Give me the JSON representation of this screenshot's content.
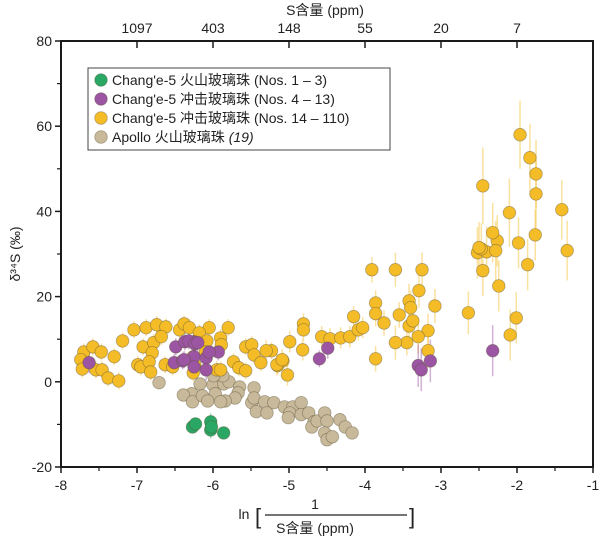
{
  "chart_data": {
    "type": "scatter",
    "title": "",
    "xlabel_prefix": "ln",
    "xlabel_numerator": "1",
    "xlabel_denominator": "S含量 (ppm)",
    "ylabel": "δ³⁴S (‰)",
    "top_xlabel": "S含量 (ppm)",
    "xlim": [
      -8,
      -1
    ],
    "ylim": [
      -20,
      80
    ],
    "x_ticks": [
      -8,
      -7,
      -6,
      -5,
      -4,
      -3,
      -2,
      -1
    ],
    "x_tick_labels": [
      "-8",
      "-7",
      "-6",
      "-5",
      "-4",
      "-3",
      "-2",
      "-1"
    ],
    "y_ticks": [
      -20,
      0,
      20,
      40,
      60,
      80
    ],
    "y_tick_labels": [
      "-20",
      "0",
      "20",
      "40",
      "60",
      "80"
    ],
    "y_minor_ticks": [
      -10,
      10,
      30,
      50,
      70
    ],
    "x_minor_ticks": [
      -7.5,
      -6.5,
      -5.5,
      -4.5,
      -3.5,
      -2.5,
      -1.5
    ],
    "top_ticks": [
      {
        "x": -7,
        "label": "1097"
      },
      {
        "x": -6,
        "label": "403"
      },
      {
        "x": -5,
        "label": "148"
      },
      {
        "x": -4,
        "label": "55"
      },
      {
        "x": -3,
        "label": "20"
      },
      {
        "x": -2,
        "label": "7"
      }
    ],
    "grid": false,
    "legend_position": "top-left",
    "series": [
      {
        "name": "Chang'e-5 火山玻璃珠 (Nos. 1 – 3)",
        "label_main": "Chang'e-5 火山玻璃珠 ",
        "label_suffix": "(Nos. 1 – 3)",
        "suffix_italic": false,
        "color": "#2aa764",
        "points": [
          [
            -6.27,
            -10.6,
            1.5
          ],
          [
            -6.23,
            -9.9,
            1.5
          ],
          [
            -6.03,
            -9.4,
            2
          ],
          [
            -6.03,
            -11.3,
            2
          ],
          [
            -6.02,
            -10.6,
            1.5
          ],
          [
            -5.86,
            -12.0,
            1.5
          ]
        ]
      },
      {
        "name": "Chang'e-5 冲击玻璃珠 (Nos. 4 – 13)",
        "label_main": "Chang'e-5 冲击玻璃珠 ",
        "label_suffix": "(Nos. 4 – 13)",
        "suffix_italic": false,
        "color": "#9b55a3",
        "points": [
          [
            -7.63,
            4.5,
            2.5
          ],
          [
            -6.49,
            8.2,
            2
          ],
          [
            -6.37,
            9.4,
            2
          ],
          [
            -6.25,
            9.4,
            2
          ],
          [
            -6.51,
            4.5,
            2
          ],
          [
            -6.4,
            4.9,
            2
          ],
          [
            -6.25,
            5.9,
            2
          ],
          [
            -6.32,
            9.6,
            2
          ],
          [
            -6.24,
            8.9,
            2
          ],
          [
            -6.2,
            9.2,
            2
          ],
          [
            -6.25,
            3.5,
            2.5
          ],
          [
            -6.38,
            5.2,
            2
          ],
          [
            -6.09,
            5.6,
            2.5
          ],
          [
            -6.09,
            2.8,
            2.5
          ],
          [
            -5.93,
            7.0,
            2
          ],
          [
            -6.05,
            7.0,
            2
          ],
          [
            -4.6,
            5.4,
            2
          ],
          [
            -4.49,
            7.9,
            2.5
          ],
          [
            -3.3,
            3.8,
            5
          ],
          [
            -3.26,
            2.8,
            5
          ],
          [
            -3.14,
            4.9,
            5
          ],
          [
            -2.32,
            7.3,
            6
          ]
        ]
      },
      {
        "name": "Chang'e-5 冲击玻璃珠 (Nos. 14 – 110)",
        "label_main": "Chang'e-5 冲击玻璃珠 ",
        "label_suffix": "(Nos. 14 – 110)",
        "suffix_italic": false,
        "color": "#f4bc27",
        "points": [
          [
            -7.7,
            7.0,
            2
          ],
          [
            -7.58,
            8.2,
            2
          ],
          [
            -7.47,
            7.0,
            2
          ],
          [
            -7.74,
            5.2,
            2
          ],
          [
            -7.72,
            3.0,
            2
          ],
          [
            -7.54,
            2.8,
            2
          ],
          [
            -7.46,
            2.8,
            2
          ],
          [
            -7.38,
            0.9,
            2
          ],
          [
            -7.24,
            0.2,
            2
          ],
          [
            -7.3,
            5.9,
            2
          ],
          [
            -7.19,
            9.6,
            2
          ],
          [
            -7.04,
            12.2,
            2
          ],
          [
            -6.88,
            12.7,
            2
          ],
          [
            -6.74,
            13.4,
            2
          ],
          [
            -6.62,
            12.9,
            2
          ],
          [
            -6.92,
            8.2,
            2
          ],
          [
            -6.78,
            9.2,
            2
          ],
          [
            -6.68,
            10.6,
            2
          ],
          [
            -6.8,
            6.8,
            2
          ],
          [
            -6.99,
            4.0,
            2
          ],
          [
            -6.95,
            3.5,
            2
          ],
          [
            -6.84,
            4.7,
            2
          ],
          [
            -6.82,
            2.3,
            2
          ],
          [
            -6.63,
            4.0,
            2
          ],
          [
            -6.53,
            3.5,
            2
          ],
          [
            -6.44,
            12.2,
            2
          ],
          [
            -6.38,
            13.6,
            2
          ],
          [
            -6.31,
            12.7,
            2
          ],
          [
            -6.05,
            12.7,
            2
          ],
          [
            -5.8,
            12.7,
            2
          ],
          [
            -6.18,
            11.5,
            2
          ],
          [
            -6.08,
            9.6,
            2
          ],
          [
            -5.9,
            10.3,
            2
          ],
          [
            -5.89,
            8.7,
            2
          ],
          [
            -6.1,
            7.0,
            2
          ],
          [
            -6.26,
            5.9,
            2
          ],
          [
            -6.24,
            4.0,
            2
          ],
          [
            -6.26,
            2.1,
            2
          ],
          [
            -5.95,
            2.8,
            2
          ],
          [
            -5.9,
            2.8,
            2
          ],
          [
            -5.73,
            4.7,
            2
          ],
          [
            -5.66,
            3.3,
            2
          ],
          [
            -5.57,
            2.6,
            2
          ],
          [
            -5.57,
            8.2,
            2
          ],
          [
            -5.49,
            8.7,
            2
          ],
          [
            -5.46,
            6.3,
            2
          ],
          [
            -5.37,
            4.5,
            2
          ],
          [
            -5.23,
            7.3,
            2
          ],
          [
            -5.15,
            3.8,
            2
          ],
          [
            -5.08,
            4.9,
            2
          ],
          [
            -5.3,
            7.3,
            2.5
          ],
          [
            -5.16,
            4.0,
            2.5
          ],
          [
            -5.09,
            5.2,
            2.5
          ],
          [
            -5.02,
            1.6,
            2.5
          ],
          [
            -4.99,
            9.4,
            2.5
          ],
          [
            -4.81,
            13.6,
            2.5
          ],
          [
            -4.81,
            12.2,
            2.5
          ],
          [
            -4.82,
            7.5,
            2.5
          ],
          [
            -4.57,
            10.6,
            2.5
          ],
          [
            -4.46,
            10.1,
            2.5
          ],
          [
            -4.32,
            10.3,
            2.5
          ],
          [
            -4.2,
            10.6,
            2.5
          ],
          [
            -4.09,
            12.2,
            2.5
          ],
          [
            -4.15,
            15.3,
            2.5
          ],
          [
            -4.03,
            12.7,
            2.5
          ],
          [
            -3.91,
            26.3,
            3
          ],
          [
            -3.86,
            18.5,
            3
          ],
          [
            -3.86,
            16.0,
            3
          ],
          [
            -3.75,
            13.8,
            3
          ],
          [
            -3.55,
            15.7,
            3
          ],
          [
            -3.45,
            9.2,
            3
          ],
          [
            -3.86,
            5.4,
            3
          ],
          [
            -3.6,
            26.3,
            4
          ],
          [
            -3.42,
            19.0,
            4
          ],
          [
            -3.29,
            21.4,
            4
          ],
          [
            -3.25,
            26.3,
            4
          ],
          [
            -3.17,
            12.0,
            4
          ],
          [
            -3.08,
            17.8,
            4
          ],
          [
            -3.4,
            17.4,
            4
          ],
          [
            -3.42,
            13.1,
            4
          ],
          [
            -3.37,
            14.3,
            4
          ],
          [
            -3.6,
            9.2,
            4
          ],
          [
            -3.3,
            10.6,
            4
          ],
          [
            -3.17,
            7.3,
            4
          ],
          [
            -2.64,
            16.2,
            5
          ],
          [
            -2.52,
            30.3,
            6
          ],
          [
            -2.45,
            26.1,
            6
          ],
          [
            -2.26,
            33.1,
            6
          ],
          [
            -2.09,
            11.0,
            6
          ],
          [
            -2.01,
            15.0,
            6
          ],
          [
            -2.24,
            22.5,
            6
          ],
          [
            -2.4,
            30.5,
            6
          ],
          [
            -2.47,
            31.2,
            6
          ],
          [
            -2.5,
            31.5,
            6
          ],
          [
            -2.45,
            46.0,
            9
          ],
          [
            -2.32,
            35.0,
            7
          ],
          [
            -1.96,
            58.0,
            8
          ],
          [
            -1.83,
            52.6,
            8
          ],
          [
            -1.75,
            48.8,
            8
          ],
          [
            -1.75,
            44.1,
            8
          ],
          [
            -2.28,
            30.8,
            7
          ],
          [
            -2.1,
            39.7,
            8
          ],
          [
            -1.76,
            34.5,
            6
          ],
          [
            -1.86,
            27.5,
            6
          ],
          [
            -1.98,
            32.6,
            6
          ],
          [
            -1.41,
            40.4,
            7
          ],
          [
            -1.34,
            30.8,
            7
          ]
        ]
      },
      {
        "name": "Apollo 火山玻璃珠 (19)",
        "label_main": "Apollo 火山玻璃珠 ",
        "label_suffix": "(19)",
        "suffix_italic": true,
        "color": "#c7b99a",
        "points": [
          [
            -6.71,
            -0.2,
            1
          ],
          [
            -6.26,
            -3.5,
            1
          ],
          [
            -6.17,
            -0.5,
            1
          ],
          [
            -6.28,
            -2.8,
            1
          ],
          [
            -6.39,
            -3.1,
            1
          ],
          [
            -6.27,
            -4.7,
            1
          ],
          [
            -6.14,
            -3.3,
            1
          ],
          [
            -6.0,
            -0.7,
            1
          ],
          [
            -5.97,
            -2.8,
            1
          ],
          [
            -5.86,
            -0.5,
            1
          ],
          [
            -5.79,
            0.0,
            1
          ],
          [
            -5.65,
            -1.2,
            1
          ],
          [
            -5.67,
            -2.6,
            1
          ],
          [
            -5.71,
            -3.8,
            1
          ],
          [
            -5.84,
            -4.5,
            1
          ],
          [
            -5.9,
            -4.7,
            1
          ],
          [
            -6.07,
            -4.5,
            1
          ],
          [
            -5.49,
            -4.9,
            1
          ],
          [
            -5.43,
            -7.0,
            1
          ],
          [
            -5.87,
            1.4,
            1
          ],
          [
            -5.99,
            1.4,
            1
          ],
          [
            -5.46,
            -1.4,
            1
          ],
          [
            -5.46,
            -3.8,
            1
          ],
          [
            -5.32,
            -4.7,
            1
          ],
          [
            -5.2,
            -4.9,
            1
          ],
          [
            -5.29,
            -7.3,
            1
          ],
          [
            -5.06,
            -5.9,
            1
          ],
          [
            -4.95,
            -5.9,
            1
          ],
          [
            -4.84,
            -4.9,
            1
          ],
          [
            -4.99,
            -7.3,
            1
          ],
          [
            -5.01,
            -8.4,
            1
          ],
          [
            -4.84,
            -7.7,
            1
          ],
          [
            -4.74,
            -7.3,
            1
          ],
          [
            -4.67,
            -9.4,
            1
          ],
          [
            -4.7,
            -10.6,
            1
          ],
          [
            -4.63,
            -9.2,
            1
          ],
          [
            -4.53,
            -7.3,
            1
          ],
          [
            -4.5,
            -9.2,
            1
          ],
          [
            -4.53,
            -12.0,
            1
          ],
          [
            -4.5,
            -13.6,
            1
          ],
          [
            -4.43,
            -12.9,
            1
          ],
          [
            -4.33,
            -8.9,
            1
          ],
          [
            -4.26,
            -10.6,
            1
          ],
          [
            -4.17,
            -12.0,
            1
          ]
        ]
      }
    ]
  }
}
